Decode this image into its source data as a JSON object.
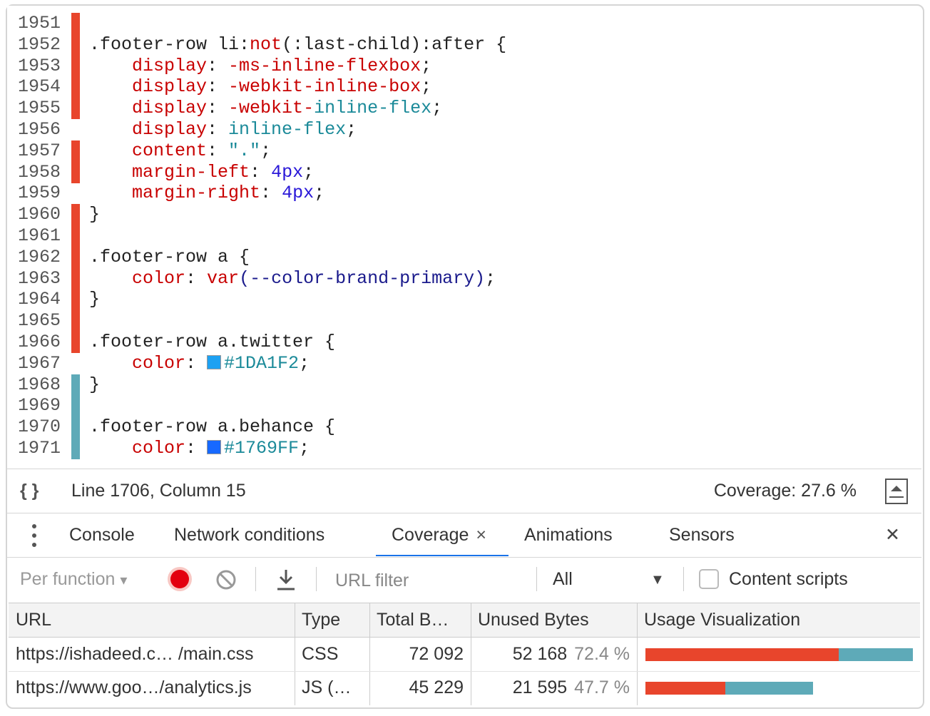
{
  "editor": {
    "lines": [
      {
        "number": "1951",
        "marker": "#e8452c",
        "tokens": []
      },
      {
        "number": "1952",
        "marker": "#e8452c",
        "tokens": [
          {
            "text": ".footer-row li:",
            "color": "#222222"
          },
          {
            "text": "not",
            "color": "#c80000"
          },
          {
            "text": "(:last-child):after {",
            "color": "#222222"
          }
        ]
      },
      {
        "number": "1953",
        "marker": "#e8452c",
        "tokens": [
          {
            "text": "    display",
            "color": "#c80000"
          },
          {
            "text": ": ",
            "color": "#222222"
          },
          {
            "text": "-ms-inline-flexbox",
            "color": "#c80000"
          },
          {
            "text": ";",
            "color": "#222222"
          }
        ]
      },
      {
        "number": "1954",
        "marker": "#e8452c",
        "tokens": [
          {
            "text": "    display",
            "color": "#c80000"
          },
          {
            "text": ": ",
            "color": "#222222"
          },
          {
            "text": "-webkit-inline-box",
            "color": "#c80000"
          },
          {
            "text": ";",
            "color": "#222222"
          }
        ]
      },
      {
        "number": "1955",
        "marker": "#e8452c",
        "tokens": [
          {
            "text": "    display",
            "color": "#c80000"
          },
          {
            "text": ": ",
            "color": "#222222"
          },
          {
            "text": "-webkit-",
            "color": "#c80000"
          },
          {
            "text": "inline-flex",
            "color": "#1b8a99"
          },
          {
            "text": ";",
            "color": "#222222"
          }
        ]
      },
      {
        "number": "1956",
        "marker": null,
        "tokens": [
          {
            "text": "    display",
            "color": "#c80000"
          },
          {
            "text": ": ",
            "color": "#222222"
          },
          {
            "text": "inline-flex",
            "color": "#1b8a99"
          },
          {
            "text": ";",
            "color": "#222222"
          }
        ]
      },
      {
        "number": "1957",
        "marker": "#e8452c",
        "tokens": [
          {
            "text": "    content",
            "color": "#c80000"
          },
          {
            "text": ": ",
            "color": "#222222"
          },
          {
            "text": "\".\"",
            "color": "#1b8a99"
          },
          {
            "text": ";",
            "color": "#222222"
          }
        ]
      },
      {
        "number": "1958",
        "marker": "#e8452c",
        "tokens": [
          {
            "text": "    margin-left",
            "color": "#c80000"
          },
          {
            "text": ": ",
            "color": "#222222"
          },
          {
            "text": "4px",
            "color": "#2a18d8"
          },
          {
            "text": ";",
            "color": "#222222"
          }
        ]
      },
      {
        "number": "1959",
        "marker": null,
        "tokens": [
          {
            "text": "    margin-right",
            "color": "#c80000"
          },
          {
            "text": ": ",
            "color": "#222222"
          },
          {
            "text": "4px",
            "color": "#2a18d8"
          },
          {
            "text": ";",
            "color": "#222222"
          }
        ]
      },
      {
        "number": "1960",
        "marker": "#e8452c",
        "tokens": [
          {
            "text": "}",
            "color": "#222222"
          }
        ]
      },
      {
        "number": "1961",
        "marker": "#e8452c",
        "tokens": []
      },
      {
        "number": "1962",
        "marker": "#e8452c",
        "tokens": [
          {
            "text": ".footer-row a {",
            "color": "#222222"
          }
        ]
      },
      {
        "number": "1963",
        "marker": "#e8452c",
        "tokens": [
          {
            "text": "    color",
            "color": "#c80000"
          },
          {
            "text": ": ",
            "color": "#222222"
          },
          {
            "text": "var",
            "color": "#c80000"
          },
          {
            "text": "(--color-brand-primary)",
            "color": "#1a1a8c"
          },
          {
            "text": ";",
            "color": "#222222"
          }
        ]
      },
      {
        "number": "1964",
        "marker": "#e8452c",
        "tokens": [
          {
            "text": "}",
            "color": "#222222"
          }
        ]
      },
      {
        "number": "1965",
        "marker": "#e8452c",
        "tokens": []
      },
      {
        "number": "1966",
        "marker": "#e8452c",
        "tokens": [
          {
            "text": ".footer-row a.twitter {",
            "color": "#222222"
          }
        ]
      },
      {
        "number": "1967",
        "marker": null,
        "tokens": [
          {
            "text": "    color",
            "color": "#c80000"
          },
          {
            "text": ": ",
            "color": "#222222"
          },
          {
            "text": "#1DA1F2",
            "color": "#1b8a99",
            "swatch": true
          },
          {
            "text": ";",
            "color": "#222222"
          }
        ]
      },
      {
        "number": "1968",
        "marker": "#5eaab8",
        "tokens": [
          {
            "text": "}",
            "color": "#222222"
          }
        ]
      },
      {
        "number": "1969",
        "marker": "#5eaab8",
        "tokens": []
      },
      {
        "number": "1970",
        "marker": "#5eaab8",
        "tokens": [
          {
            "text": ".footer-row a.behance {",
            "color": "#222222"
          }
        ]
      },
      {
        "number": "1971",
        "marker": "#5eaab8",
        "tokens": [
          {
            "text": "    color",
            "color": "#c80000"
          },
          {
            "text": ": ",
            "color": "#222222"
          },
          {
            "text": "#1769FF",
            "color": "#1b8a99",
            "swatch": true
          },
          {
            "text": ";",
            "color": "#222222"
          }
        ]
      }
    ]
  },
  "status_bar": {
    "icon": "{ }",
    "position": "Line 1706, Column 15",
    "coverage": "Coverage: 27.6 %"
  },
  "drawer": {
    "tabs": [
      {
        "label": "Console"
      },
      {
        "label": "Network conditions"
      },
      {
        "label": "Coverage",
        "active": true,
        "close": "×"
      },
      {
        "label": "Animations"
      },
      {
        "label": "Sensors"
      }
    ],
    "close": "✕"
  },
  "toolbar": {
    "mode": "Per function",
    "mode_arrow": "▾",
    "url_filter_placeholder": "URL filter",
    "type_filter": "All",
    "type_arrow": "▼",
    "content_scripts": "Content scripts"
  },
  "table": {
    "columns": [
      "URL",
      "Type",
      "Total B…",
      "Unused Bytes",
      "Usage Visualization"
    ],
    "rows": [
      {
        "url": "https://ishadeed.c… /main.css",
        "type": "CSS",
        "total_bytes": {
          "value": 72092,
          "label": "72 092"
        },
        "unused_bytes": {
          "value": 52168,
          "label": "52 168"
        },
        "unused_percent": {
          "value": 72.4,
          "label": "72.4 %"
        }
      },
      {
        "url": "https://www.goo…/analytics.js",
        "type": "JS (…",
        "total_bytes": {
          "value": 45229,
          "label": "45 229"
        },
        "unused_bytes": {
          "value": 21595,
          "label": "21 595"
        },
        "unused_percent": {
          "value": 47.7,
          "label": "47.7 %"
        }
      }
    ],
    "colors": {
      "unused": "#e8452c",
      "used": "#5eaab8"
    }
  }
}
